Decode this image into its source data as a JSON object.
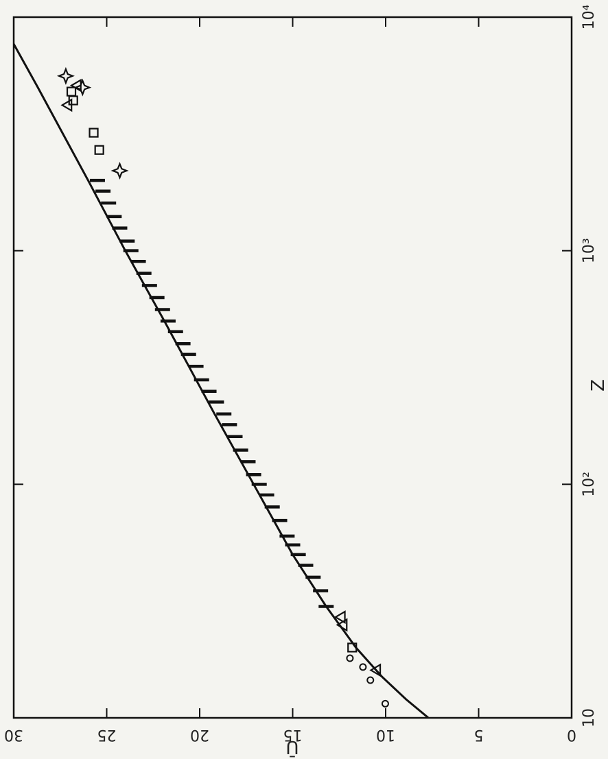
{
  "chart_data": {
    "type": "scatter",
    "title": "",
    "xlabel": "Z",
    "ylabel": "Ū",
    "x_scale": "log",
    "xlim": [
      10,
      10000
    ],
    "ylim": [
      0,
      30
    ],
    "grid": false,
    "x_ticks": [
      {
        "value": 10,
        "label": "10"
      },
      {
        "value": 100,
        "label": "10²"
      },
      {
        "value": 1000,
        "label": "10³"
      },
      {
        "value": 10000,
        "label": "10⁴"
      }
    ],
    "y_ticks": [
      {
        "value": 0,
        "label": "0"
      },
      {
        "value": 5,
        "label": "5"
      },
      {
        "value": 10,
        "label": "10"
      },
      {
        "value": 15,
        "label": "15"
      },
      {
        "value": 20,
        "label": "20"
      },
      {
        "value": 25,
        "label": "25"
      },
      {
        "value": 30,
        "label": "30"
      }
    ],
    "fit_line": {
      "x": [
        10,
        12,
        15,
        20,
        30,
        50,
        100,
        200,
        500,
        1000,
        2000,
        5000,
        10000
      ],
      "y": [
        7.7,
        8.9,
        10.2,
        11.6,
        13.2,
        15.0,
        17.1,
        19.2,
        21.9,
        24.0,
        26.0,
        28.7,
        30.8
      ]
    },
    "series": [
      {
        "marker": "circle",
        "x": [
          11.5,
          14.5,
          16.5,
          18
        ],
        "y": [
          9.8,
          10.6,
          11.0,
          11.7
        ]
      },
      {
        "marker": "triangle",
        "x": [
          16,
          25,
          27,
          4200,
          5100
        ],
        "y": [
          10.5,
          12.3,
          12.4,
          27.1,
          26.6
        ]
      },
      {
        "marker": "square",
        "x": [
          20,
          2700,
          3200,
          4400,
          4800
        ],
        "y": [
          11.8,
          25.4,
          25.7,
          26.8,
          26.9
        ]
      },
      {
        "marker": "star",
        "x": [
          2200,
          5000,
          5600
        ],
        "y": [
          24.3,
          26.3,
          27.2
        ]
      },
      {
        "marker": "bar",
        "x": [
          30,
          35,
          40,
          45,
          50,
          55,
          60,
          70,
          80,
          90,
          100,
          110,
          125,
          140,
          160,
          180,
          200,
          225,
          250,
          280,
          320,
          360,
          400,
          450,
          500,
          560,
          630,
          710,
          800,
          900,
          1000,
          1100,
          1250,
          1400,
          1600,
          1800,
          2000
        ],
        "y": [
          13.2,
          13.5,
          13.9,
          14.3,
          14.7,
          15.0,
          15.3,
          15.7,
          16.1,
          16.4,
          16.8,
          17.1,
          17.4,
          17.8,
          18.1,
          18.4,
          18.7,
          19.1,
          19.5,
          19.9,
          20.2,
          20.6,
          20.9,
          21.3,
          21.7,
          22.0,
          22.3,
          22.7,
          23.0,
          23.3,
          23.7,
          23.9,
          24.3,
          24.6,
          24.9,
          25.2,
          25.5
        ]
      }
    ]
  }
}
